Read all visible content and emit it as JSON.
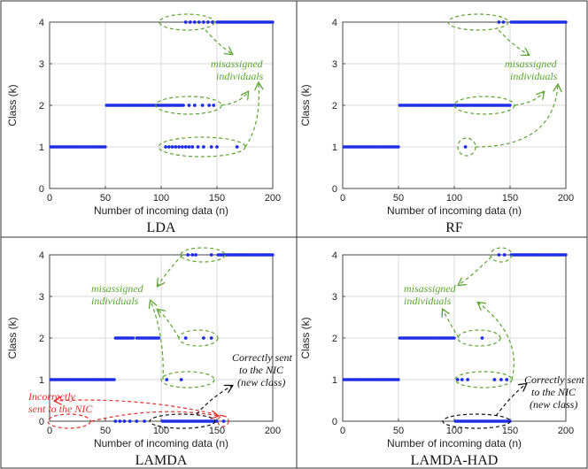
{
  "colors": {
    "points": "#1f2ee6",
    "grid": "#d9d9d9",
    "green_annotation": "#5aa531",
    "red_annotation": "#e0312b",
    "black_annotation": "#111111",
    "frame": "#333333"
  },
  "chart_data": [
    {
      "type": "scatter",
      "caption": "LDA",
      "xlabel": "Number of incoming data (n)",
      "ylabel": "Class (k)",
      "xlim": [
        0,
        200
      ],
      "ylim": [
        0,
        4
      ],
      "xticks": [
        "0",
        "50",
        "100",
        "150",
        "200"
      ],
      "yticks": [
        "0",
        "1",
        "2",
        "3",
        "4"
      ],
      "grid": true,
      "series": [
        {
          "label": "class 1 run",
          "x_start": 1,
          "x_end": 50,
          "y": 1
        },
        {
          "label": "class 2 run",
          "x_start": 51,
          "x_end": 120,
          "y": 2
        },
        {
          "label": "class 4 run",
          "x_start": 150,
          "x_end": 200,
          "y": 4
        }
      ],
      "scattered_points": [
        {
          "x": 104,
          "y": 1
        },
        {
          "x": 107,
          "y": 1
        },
        {
          "x": 110,
          "y": 1
        },
        {
          "x": 113,
          "y": 1
        },
        {
          "x": 116,
          "y": 1
        },
        {
          "x": 119,
          "y": 1
        },
        {
          "x": 122,
          "y": 1
        },
        {
          "x": 125,
          "y": 1
        },
        {
          "x": 128,
          "y": 1
        },
        {
          "x": 133,
          "y": 1
        },
        {
          "x": 138,
          "y": 1
        },
        {
          "x": 145,
          "y": 1
        },
        {
          "x": 150,
          "y": 1
        },
        {
          "x": 168,
          "y": 1
        },
        {
          "x": 125,
          "y": 2
        },
        {
          "x": 130,
          "y": 2
        },
        {
          "x": 137,
          "y": 2
        },
        {
          "x": 143,
          "y": 2
        },
        {
          "x": 147,
          "y": 2
        },
        {
          "x": 122,
          "y": 4
        },
        {
          "x": 126,
          "y": 4
        },
        {
          "x": 130,
          "y": 4
        },
        {
          "x": 134,
          "y": 4
        },
        {
          "x": 138,
          "y": 4
        },
        {
          "x": 142,
          "y": 4
        },
        {
          "x": 146,
          "y": 4
        }
      ],
      "annotations": [
        {
          "text": "misassigned individuals",
          "color": "green"
        }
      ]
    },
    {
      "type": "scatter",
      "caption": "RF",
      "xlabel": "Number of incoming data (n)",
      "ylabel": "Class (k)",
      "xlim": [
        0,
        200
      ],
      "ylim": [
        0,
        4
      ],
      "xticks": [
        "0",
        "50",
        "100",
        "150",
        "200"
      ],
      "yticks": [
        "0",
        "1",
        "2",
        "3",
        "4"
      ],
      "grid": true,
      "series": [
        {
          "label": "class 1 run",
          "x_start": 1,
          "x_end": 50,
          "y": 1
        },
        {
          "label": "class 2 run",
          "x_start": 51,
          "x_end": 150,
          "y": 2
        },
        {
          "label": "class 4 run",
          "x_start": 151,
          "x_end": 200,
          "y": 4
        }
      ],
      "scattered_points": [
        {
          "x": 110,
          "y": 1
        },
        {
          "x": 140,
          "y": 4
        },
        {
          "x": 144,
          "y": 4
        }
      ],
      "annotations": [
        {
          "text": "misassigned individuals",
          "color": "green"
        }
      ]
    },
    {
      "type": "scatter",
      "caption": "LAMDA",
      "xlabel": "Number of incoming data (n)",
      "ylabel": "Class (k)",
      "xlim": [
        0,
        200
      ],
      "ylim": [
        0,
        4
      ],
      "xticks": [
        "0",
        "50",
        "100",
        "150",
        "200"
      ],
      "yticks": [
        "0",
        "1",
        "2",
        "3",
        "4"
      ],
      "grid": true,
      "series": [
        {
          "label": "class 1 run",
          "x_start": 1,
          "x_end": 58,
          "y": 1
        },
        {
          "label": "class 2 run a",
          "x_start": 59,
          "x_end": 75,
          "y": 2
        },
        {
          "label": "class 2 run b",
          "x_start": 78,
          "x_end": 98,
          "y": 2
        },
        {
          "label": "class 0 run",
          "x_start": 101,
          "x_end": 150,
          "y": 0
        },
        {
          "label": "class 4 run",
          "x_start": 151,
          "x_end": 200,
          "y": 4
        }
      ],
      "scattered_points": [
        {
          "x": 59,
          "y": 0
        },
        {
          "x": 63,
          "y": 0
        },
        {
          "x": 67,
          "y": 0
        },
        {
          "x": 72,
          "y": 0
        },
        {
          "x": 78,
          "y": 0
        },
        {
          "x": 85,
          "y": 0
        },
        {
          "x": 156,
          "y": 0
        },
        {
          "x": 105,
          "y": 1
        },
        {
          "x": 118,
          "y": 1
        },
        {
          "x": 122,
          "y": 2
        },
        {
          "x": 138,
          "y": 2
        },
        {
          "x": 145,
          "y": 2
        },
        {
          "x": 124,
          "y": 4
        },
        {
          "x": 128,
          "y": 4
        },
        {
          "x": 131,
          "y": 4
        },
        {
          "x": 145,
          "y": 4
        }
      ],
      "annotations": [
        {
          "text": "misassigned individuals",
          "color": "green"
        },
        {
          "text": "Incorrectly sent to the NIC",
          "color": "red"
        },
        {
          "text": "Correctly sent to the NIC (new class)",
          "color": "black"
        }
      ]
    },
    {
      "type": "scatter",
      "caption": "LAMDA-HAD",
      "xlabel": "Number of incoming data (n)",
      "ylabel": "Class (k)",
      "xlim": [
        0,
        200
      ],
      "ylim": [
        0,
        4
      ],
      "xticks": [
        "0",
        "50",
        "100",
        "150",
        "200"
      ],
      "yticks": [
        "0",
        "1",
        "2",
        "3",
        "4"
      ],
      "grid": true,
      "series": [
        {
          "label": "class 1 run",
          "x_start": 1,
          "x_end": 50,
          "y": 1
        },
        {
          "label": "class 2 run",
          "x_start": 51,
          "x_end": 100,
          "y": 2
        },
        {
          "label": "class 0 run",
          "x_start": 101,
          "x_end": 150,
          "y": 0
        },
        {
          "label": "class 4 run",
          "x_start": 151,
          "x_end": 200,
          "y": 4
        }
      ],
      "scattered_points": [
        {
          "x": 103,
          "y": 1
        },
        {
          "x": 107,
          "y": 1
        },
        {
          "x": 112,
          "y": 1
        },
        {
          "x": 136,
          "y": 1
        },
        {
          "x": 142,
          "y": 1
        },
        {
          "x": 147,
          "y": 1
        },
        {
          "x": 125,
          "y": 2
        },
        {
          "x": 140,
          "y": 4
        },
        {
          "x": 145,
          "y": 4
        }
      ],
      "annotations": [
        {
          "text": "misassigned individuals",
          "color": "green"
        },
        {
          "text": "Correctly sent to the NIC (new class)",
          "color": "black"
        }
      ]
    }
  ],
  "annotations": {
    "misassigned_line1": "misassigned",
    "misassigned_line2": "individuals",
    "incorrect_line1": "Incorrectly",
    "incorrect_line2": "sent to the NIC",
    "correct_line1": "Correctly sent",
    "correct_line2": "to the NIC",
    "correct_line3": "(new class)",
    "correct_had_line1": "Correctly sent",
    "correct_had_line2": "to the NIC",
    "correct_had_line3": "(new class)"
  }
}
